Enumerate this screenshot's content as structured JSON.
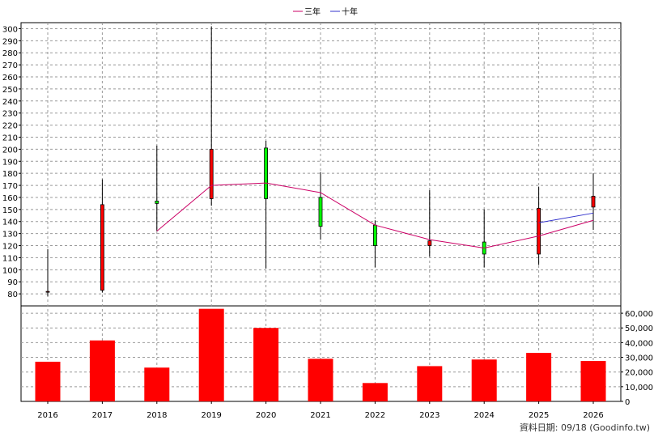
{
  "chart_data": {
    "type": "candlestick",
    "categories": [
      "2016",
      "2017",
      "2018",
      "2019",
      "2020",
      "2021",
      "2022",
      "2023",
      "2024",
      "2025",
      "2026"
    ],
    "price_axis": {
      "ylim": [
        70,
        305
      ],
      "ticks": [
        80,
        90,
        100,
        110,
        120,
        130,
        140,
        150,
        160,
        170,
        180,
        190,
        200,
        210,
        220,
        230,
        240,
        250,
        260,
        270,
        280,
        290,
        300
      ]
    },
    "volume_axis": {
      "ylim": [
        0,
        65000
      ],
      "ticks": [
        0,
        10000,
        20000,
        30000,
        40000,
        50000,
        60000
      ],
      "tick_labels": [
        "0",
        "10,000",
        "20,000",
        "30,000",
        "40,000",
        "50,000",
        "60,000"
      ]
    },
    "candles": [
      {
        "open": 82,
        "close": 82,
        "high": 117,
        "low": 78
      },
      {
        "open": 83,
        "close": 154,
        "high": 175,
        "low": 81
      },
      {
        "open": 157,
        "close": 155,
        "high": 203,
        "low": 132
      },
      {
        "open": 159,
        "close": 200,
        "high": 302,
        "low": 153
      },
      {
        "open": 201,
        "close": 159,
        "high": 207,
        "low": 101
      },
      {
        "open": 160,
        "close": 136,
        "high": 181,
        "low": 125
      },
      {
        "open": 137,
        "close": 120,
        "high": 141,
        "low": 102
      },
      {
        "open": 120,
        "close": 124,
        "high": 166,
        "low": 111
      },
      {
        "open": 123,
        "close": 113,
        "high": 150,
        "low": 102
      },
      {
        "open": 113,
        "close": 151,
        "high": 169,
        "low": 104
      },
      {
        "open": 152,
        "close": 161,
        "high": 180,
        "low": 133
      }
    ],
    "candle_colors": {
      "up": "#ff0000",
      "down": "#00ff00",
      "outline": "#000000"
    },
    "volume": [
      27000,
      41500,
      23000,
      63000,
      50000,
      29000,
      12500,
      24000,
      28500,
      33000,
      27500
    ],
    "volume_color": "#ff0000",
    "series": [
      {
        "name": "三年",
        "color": "#cc0066",
        "values": [
          null,
          null,
          132,
          170,
          172,
          164,
          137,
          125,
          118,
          128,
          141
        ]
      },
      {
        "name": "十年",
        "color": "#3333cc",
        "values": [
          null,
          null,
          null,
          null,
          null,
          null,
          null,
          null,
          null,
          139,
          147
        ]
      }
    ],
    "legend_position": "top-center",
    "grid": true,
    "footer": "資料日期: 09/18 (Goodinfo.tw)"
  }
}
